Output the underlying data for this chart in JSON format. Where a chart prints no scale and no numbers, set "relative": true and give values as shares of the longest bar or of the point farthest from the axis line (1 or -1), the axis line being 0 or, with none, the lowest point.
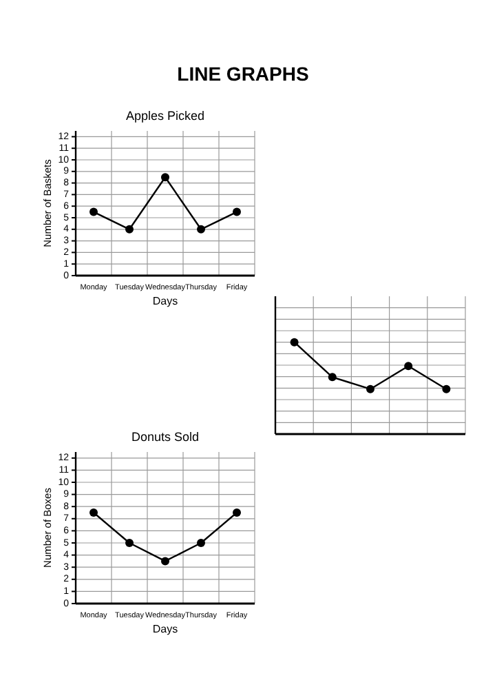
{
  "chart_data": [
    {
      "type": "other",
      "title": "LINE GRAPHS"
    },
    {
      "type": "line",
      "title": "Apples Picked",
      "xlabel": "Days",
      "ylabel": "Number of Baskets",
      "categories": [
        "Monday",
        "Tuesday",
        "Wednesday",
        "Thursday",
        "Friday"
      ],
      "values": [
        5.5,
        4,
        8.5,
        4,
        5.5
      ],
      "color": "#000000",
      "ylim": [
        0,
        12.5
      ],
      "yticks": [
        0,
        1,
        2,
        3,
        4,
        5,
        6,
        7,
        8,
        9,
        10,
        11,
        12
      ],
      "grid": true,
      "marker": "circle",
      "line_style": "solid"
    },
    {
      "type": "line",
      "categories": [
        null,
        null,
        null,
        null,
        null
      ],
      "values": [
        1,
        0.62,
        0.49,
        0.74,
        0.49
      ],
      "relative": true,
      "color": "#000000",
      "grid": true,
      "marker": "circle",
      "line_style": "solid"
    },
    {
      "type": "line",
      "title": "Donuts Sold",
      "xlabel": "Days",
      "ylabel": "Number of Boxes",
      "categories": [
        "Monday",
        "Tuesday",
        "Wednesday",
        "Thursday",
        "Friday"
      ],
      "values": [
        7.5,
        5,
        3.5,
        5,
        7.5
      ],
      "color": "#000000",
      "ylim": [
        0,
        12.5
      ],
      "yticks": [
        0,
        1,
        2,
        3,
        4,
        5,
        6,
        7,
        8,
        9,
        10,
        11,
        12
      ],
      "grid": true,
      "marker": "circle",
      "line_style": "solid"
    }
  ]
}
